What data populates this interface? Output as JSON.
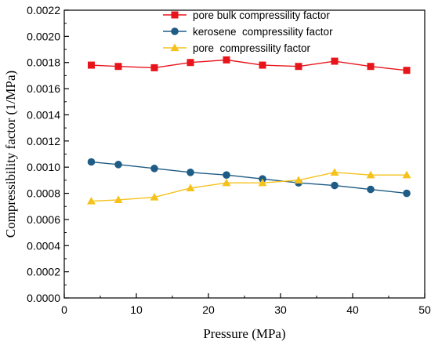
{
  "chart_data": {
    "type": "line",
    "xlabel": "Pressure (MPa)",
    "ylabel": "Compressibility factor (1/MPa)",
    "xlim": [
      0,
      50
    ],
    "ylim": [
      0,
      0.0022
    ],
    "xticks": [
      "0",
      "10",
      "20",
      "30",
      "40",
      "50"
    ],
    "yticks": [
      "0.0000",
      "0.0002",
      "0.0004",
      "0.0006",
      "0.0008",
      "0.0010",
      "0.0012",
      "0.0014",
      "0.0016",
      "0.0018",
      "0.0020",
      "0.0022"
    ],
    "grid": false,
    "legend_position": "top-center",
    "x": [
      3.75,
      7.5,
      12.5,
      17.5,
      22.5,
      27.5,
      32.5,
      37.5,
      42.5,
      47.5
    ],
    "series": [
      {
        "name": "pore bulk compressility factor",
        "marker": "square",
        "color": "#e8141b",
        "values": [
          0.00178,
          0.00177,
          0.00176,
          0.0018,
          0.00182,
          0.00178,
          0.00177,
          0.00181,
          0.00177,
          0.00174
        ]
      },
      {
        "name": "kerosene  compressility factor",
        "marker": "circle",
        "color": "#1e5b85",
        "values": [
          0.00104,
          0.00102,
          0.00099,
          0.00096,
          0.00094,
          0.00091,
          0.00088,
          0.00086,
          0.00083,
          0.0008
        ]
      },
      {
        "name": "pore  compressility factor",
        "marker": "triangle",
        "color": "#f5c21b",
        "values": [
          0.00074,
          0.00075,
          0.00077,
          0.00084,
          0.00088,
          0.00088,
          0.0009,
          0.00096,
          0.00094,
          0.00094
        ]
      }
    ]
  }
}
